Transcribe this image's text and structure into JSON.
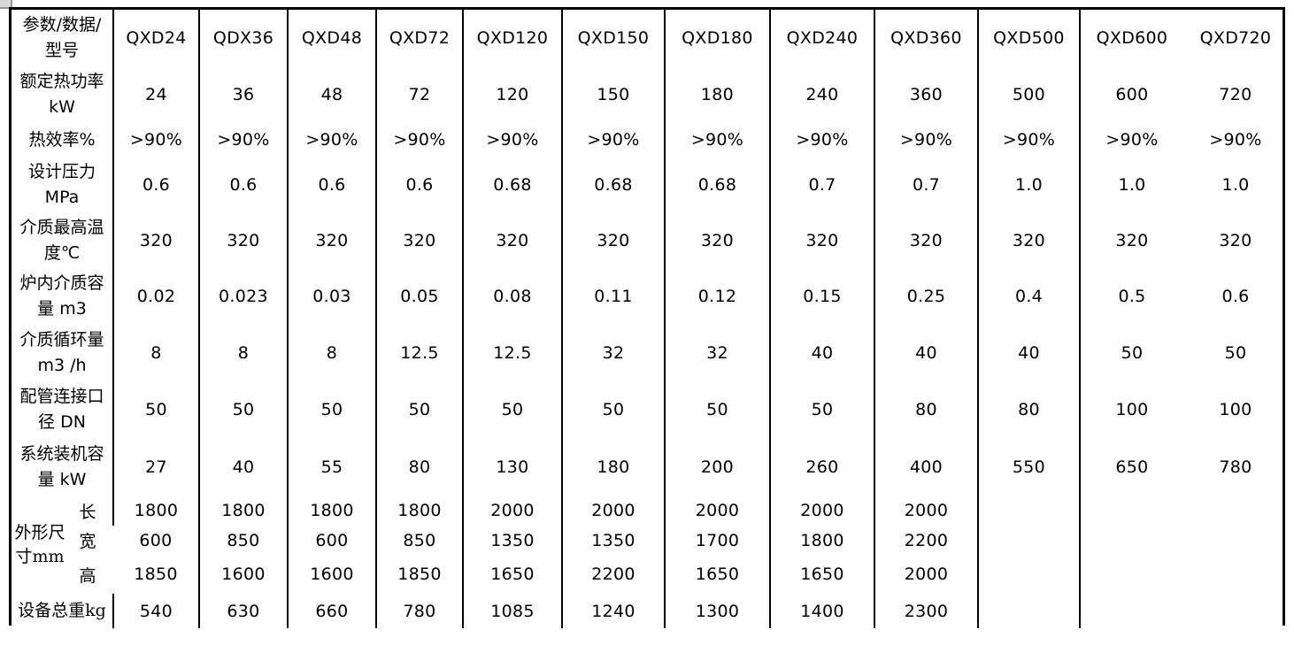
{
  "colors": {
    "background": "#ffffff",
    "border": "#000000",
    "text": "#000000",
    "corner_artifact": "#d9d9d9"
  },
  "table": {
    "param_header": "参数/数据/\n型号",
    "models": [
      "QXD24",
      "QDX36",
      "QXD48",
      "QXD72",
      "QXD120",
      "QXD150",
      "QXD180",
      "QXD240",
      "QXD360",
      "QXD500",
      "QXD600",
      "QXD720"
    ],
    "rows": [
      {
        "label": "额定热功率\nkW",
        "values": [
          "24",
          "36",
          "48",
          "72",
          "120",
          "150",
          "180",
          "240",
          "360",
          "500",
          "600",
          "720"
        ]
      },
      {
        "label": "热效率%",
        "values": [
          ">90%",
          ">90%",
          ">90%",
          ">90%",
          ">90%",
          ">90%",
          ">90%",
          ">90%",
          ">90%",
          ">90%",
          ">90%",
          ">90%"
        ]
      },
      {
        "label": "设计压力\nMPa",
        "values": [
          "0.6",
          "0.6",
          "0.6",
          "0.6",
          "0.68",
          "0.68",
          "0.68",
          "0.7",
          "0.7",
          "1.0",
          "1.0",
          "1.0"
        ]
      },
      {
        "label": "介质最高温\n度℃",
        "values": [
          "320",
          "320",
          "320",
          "320",
          "320",
          "320",
          "320",
          "320",
          "320",
          "320",
          "320",
          "320"
        ]
      },
      {
        "label": "炉内介质容\n量 m3",
        "values": [
          "0.02",
          "0.023",
          "0.03",
          "0.05",
          "0.08",
          "0.11",
          "0.12",
          "0.15",
          "0.25",
          "0.4",
          "0.5",
          "0.6"
        ]
      },
      {
        "label": "介质循环量\nm3 /h",
        "values": [
          "8",
          "8",
          "8",
          "12.5",
          "12.5",
          "32",
          "32",
          "40",
          "40",
          "40",
          "50",
          "50"
        ]
      },
      {
        "label": "配管连接口\n径 DN",
        "values": [
          "50",
          "50",
          "50",
          "50",
          "50",
          "50",
          "50",
          "50",
          "80",
          "80",
          "100",
          "100"
        ]
      },
      {
        "label": "系统装机容\n量 kW",
        "values": [
          "27",
          "40",
          "55",
          "80",
          "130",
          "180",
          "200",
          "260",
          "400",
          "550",
          "650",
          "780"
        ]
      }
    ],
    "dimensions": {
      "group_label": "外形尺\n寸mm",
      "subrows": [
        {
          "label": "长",
          "values": [
            "1800",
            "1800",
            "1800",
            "1800",
            "2000",
            "2000",
            "2000",
            "2000",
            "2000",
            "",
            "",
            ""
          ]
        },
        {
          "label": "宽",
          "values": [
            "600",
            "850",
            "600",
            "850",
            "1350",
            "1350",
            "1700",
            "1800",
            "2200",
            "",
            "",
            ""
          ]
        },
        {
          "label": "高",
          "values": [
            "1850",
            "1600",
            "1600",
            "1850",
            "1650",
            "2200",
            "1650",
            "1650",
            "2000",
            "",
            "",
            ""
          ]
        }
      ]
    },
    "weight_row": {
      "label": "设备总重kg",
      "values": [
        "540",
        "630",
        "660",
        "780",
        "1085",
        "1240",
        "1300",
        "1400",
        "2300",
        "",
        "",
        ""
      ]
    }
  }
}
